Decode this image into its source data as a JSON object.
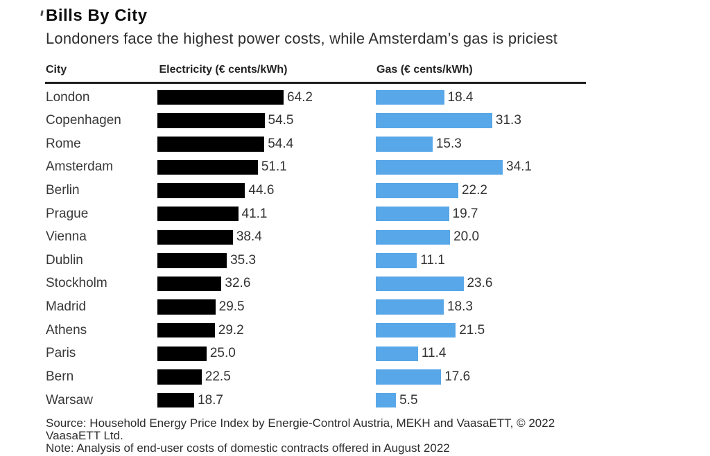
{
  "chart_data": {
    "type": "bar",
    "title": "Bills By City",
    "subtitle": "Londoners face the highest power costs, while Amsterdam’s gas is priciest",
    "columns": [
      "City",
      "Electricity (€ cents/kWh)",
      "Gas (€ cents/kWh)"
    ],
    "categories": [
      "London",
      "Copenhagen",
      "Rome",
      "Amsterdam",
      "Berlin",
      "Prague",
      "Vienna",
      "Dublin",
      "Stockholm",
      "Madrid",
      "Athens",
      "Paris",
      "Bern",
      "Warsaw"
    ],
    "series": [
      {
        "name": "Electricity (€ cents/kWh)",
        "color": "#000000",
        "values": [
          64.2,
          54.5,
          54.4,
          51.1,
          44.6,
          41.1,
          38.4,
          35.3,
          32.6,
          29.5,
          29.2,
          25.0,
          22.5,
          18.7
        ]
      },
      {
        "name": "Gas (€ cents/kWh)",
        "color": "#58a7e9",
        "values": [
          18.4,
          31.3,
          15.3,
          34.1,
          22.2,
          19.7,
          20.0,
          11.1,
          23.6,
          18.3,
          21.5,
          11.4,
          17.6,
          5.5
        ]
      }
    ],
    "value_decimals": 1,
    "source_lines": [
      "Source: Household Energy Price Index by Energie-Control Austria, MEKH and VaasaETT, © 2022",
      "VaasaETT Ltd."
    ],
    "note": "Note: Analysis of end-user costs of domestic contracts offered in August 2022"
  }
}
